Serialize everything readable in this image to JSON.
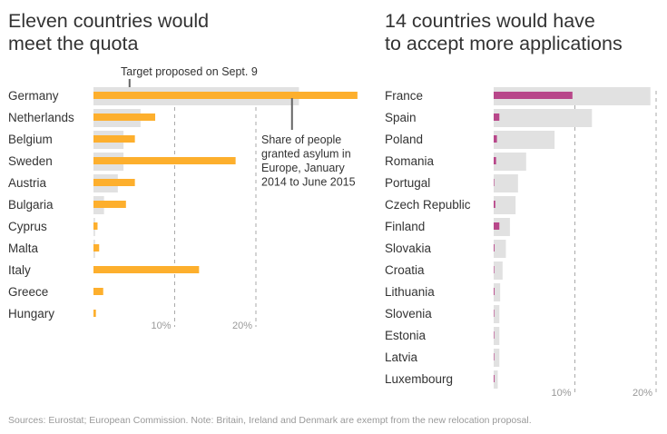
{
  "chart_data": [
    {
      "type": "bar",
      "orientation": "horizontal",
      "title": "Eleven countries would meet the quota",
      "categories": [
        "Germany",
        "Netherlands",
        "Belgium",
        "Sweden",
        "Austria",
        "Bulgaria",
        "Cyprus",
        "Malta",
        "Italy",
        "Greece",
        "Hungary"
      ],
      "series": [
        {
          "name": "Target proposed on Sept. 9",
          "color": "#e1e1e1",
          "values": [
            25.3,
            5.8,
            3.7,
            3.7,
            3.0,
            1.3,
            0.2,
            0.2,
            0,
            0,
            0
          ]
        },
        {
          "name": "Share of people granted asylum in Europe, January 2014 to June 2015",
          "color": "#fdaf2d",
          "values": [
            32.5,
            7.6,
            5.1,
            17.5,
            5.1,
            4.0,
            0.5,
            0.7,
            13.0,
            1.2,
            0.3
          ]
        }
      ],
      "xlabel": "",
      "ylabel": "",
      "xlim": [
        0,
        35
      ],
      "xticks": [
        10,
        20
      ],
      "xtick_labels": [
        "10%",
        "20%"
      ],
      "grid": "dashed vertical at ticks",
      "annotations": [
        {
          "text": "Target proposed on Sept. 9",
          "target_category": "Germany",
          "target_value": 4.5
        },
        {
          "text_lines": [
            "Share of people",
            "granted asylum in",
            "Europe, January",
            "2014 to June 2015"
          ],
          "target_category": "Germany",
          "target_value": 24.5
        }
      ]
    },
    {
      "type": "bar",
      "orientation": "horizontal",
      "title": "14 countries would have to accept more applications",
      "categories": [
        "France",
        "Spain",
        "Poland",
        "Romania",
        "Portugal",
        "Czech Republic",
        "Finland",
        "Slovakia",
        "Croatia",
        "Lithuania",
        "Slovenia",
        "Estonia",
        "Latvia",
        "Luxembourg"
      ],
      "series": [
        {
          "name": "Target proposed on Sept. 9",
          "color": "#e1e1e1",
          "values": [
            19.3,
            12.1,
            7.5,
            4.0,
            3.0,
            2.7,
            2.0,
            1.5,
            1.1,
            0.8,
            0.7,
            0.7,
            0.7,
            0.5
          ]
        },
        {
          "name": "Share of people granted asylum in Europe, January 2014 to June 2015",
          "color": "#b8478a",
          "values": [
            9.7,
            0.7,
            0.4,
            0.3,
            0.05,
            0.2,
            0.7,
            0.1,
            0.05,
            0.1,
            0.05,
            0.05,
            0.03,
            0.1
          ]
        }
      ],
      "xlabel": "",
      "ylabel": "",
      "xlim": [
        0,
        20
      ],
      "xticks": [
        10,
        20
      ],
      "xtick_labels": [
        "10%",
        "20%"
      ],
      "grid": "dashed vertical at ticks"
    }
  ],
  "titles": {
    "left_line1": "Eleven countries would",
    "left_line2": "meet the quota",
    "right_line1": "14 countries would have",
    "right_line2": "to accept more applications"
  },
  "source": "Sources: Eurostat; European Commission. Note: Britain, Ireland and Denmark are exempt from the new relocation proposal."
}
